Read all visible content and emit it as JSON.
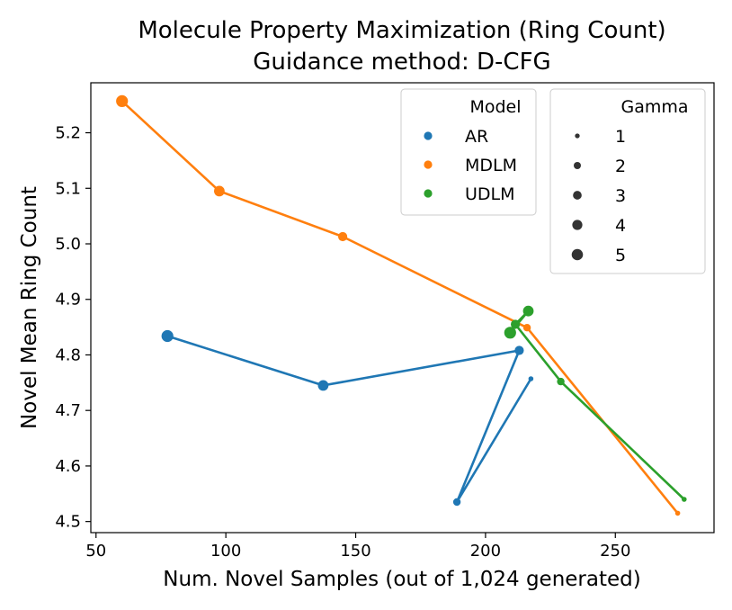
{
  "chart_data": {
    "type": "line",
    "title": "Molecule Property Maximization (Ring Count)",
    "subtitle": "Guidance method: D-CFG",
    "xlabel": "Num. Novel Samples (out of 1,024 generated)",
    "ylabel": "Novel Mean Ring Count",
    "xlim": [
      48,
      288
    ],
    "ylim": [
      4.48,
      5.29
    ],
    "xticks": [
      50,
      100,
      150,
      200,
      250
    ],
    "yticks": [
      4.5,
      4.6,
      4.7,
      4.8,
      4.9,
      5.0,
      5.1,
      5.2
    ],
    "ytick_labels": [
      "4.5",
      "4.6",
      "4.7",
      "4.8",
      "4.9",
      "5.0",
      "5.1",
      "5.2"
    ],
    "grid": false,
    "series": [
      {
        "name": "AR",
        "color": "#1f77b4",
        "points": [
          {
            "x": 217.5,
            "y": 4.757,
            "gamma": 1
          },
          {
            "x": 189,
            "y": 4.535,
            "gamma": 2
          },
          {
            "x": 213,
            "y": 4.808,
            "gamma": 3
          },
          {
            "x": 137.5,
            "y": 4.745,
            "gamma": 4
          },
          {
            "x": 77.5,
            "y": 4.834,
            "gamma": 5
          }
        ]
      },
      {
        "name": "MDLM",
        "color": "#ff7f0e",
        "points": [
          {
            "x": 274,
            "y": 4.515,
            "gamma": 1
          },
          {
            "x": 216,
            "y": 4.849,
            "gamma": 2
          },
          {
            "x": 145,
            "y": 5.013,
            "gamma": 3
          },
          {
            "x": 97.5,
            "y": 5.095,
            "gamma": 4
          },
          {
            "x": 60,
            "y": 5.257,
            "gamma": 5
          }
        ]
      },
      {
        "name": "UDLM",
        "color": "#2ca02c",
        "points": [
          {
            "x": 276.5,
            "y": 4.54,
            "gamma": 1
          },
          {
            "x": 229,
            "y": 4.752,
            "gamma": 2
          },
          {
            "x": 211.5,
            "y": 4.855,
            "gamma": 3
          },
          {
            "x": 216.5,
            "y": 4.879,
            "gamma": 4
          },
          {
            "x": 209.5,
            "y": 4.84,
            "gamma": 5
          }
        ]
      }
    ],
    "legend_model": {
      "title": "Model",
      "placement": "top-right",
      "entries": [
        "AR",
        "MDLM",
        "UDLM"
      ]
    },
    "legend_gamma": {
      "title": "Gamma",
      "placement": "top-right",
      "entries": [
        "1",
        "2",
        "3",
        "4",
        "5"
      ]
    }
  }
}
